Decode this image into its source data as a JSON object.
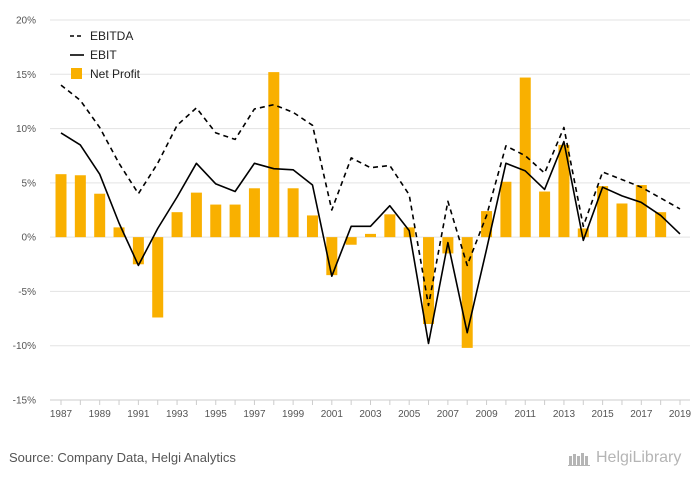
{
  "chart_data": {
    "type": "bar",
    "categories": [
      1987,
      1988,
      1989,
      1990,
      1991,
      1992,
      1993,
      1994,
      1995,
      1996,
      1997,
      1998,
      1999,
      2000,
      2001,
      2002,
      2003,
      2004,
      2005,
      2006,
      2007,
      2008,
      2009,
      2010,
      2011,
      2012,
      2013,
      2014,
      2015,
      2016,
      2017,
      2018,
      2019
    ],
    "x_tick_labels": [
      "1987",
      "1989",
      "1991",
      "1993",
      "1995",
      "1997",
      "1999",
      "2001",
      "2003",
      "2005",
      "2007",
      "2009",
      "2011",
      "2013",
      "2015",
      "2017",
      "2019"
    ],
    "y_ticks": [
      -15,
      -10,
      -5,
      0,
      5,
      10,
      15,
      20
    ],
    "y_tick_labels": [
      "-15%",
      "-10%",
      "-5%",
      "0%",
      "5%",
      "10%",
      "15%",
      "20%"
    ],
    "ylim": [
      -15,
      20
    ],
    "grid": true,
    "legend_position": "top-left",
    "series": [
      {
        "name": "EBITDA",
        "kind": "line",
        "style": "dashed",
        "color": "#000000",
        "values": [
          14.0,
          12.6,
          10.1,
          6.8,
          4.0,
          6.8,
          10.3,
          11.9,
          9.6,
          9.0,
          11.8,
          12.2,
          11.5,
          10.3,
          2.5,
          7.3,
          6.4,
          6.6,
          3.9,
          -6.3,
          3.3,
          -2.6,
          2.0,
          8.4,
          7.5,
          5.9,
          10.1,
          1.0,
          6.0,
          5.3,
          4.6,
          3.6,
          2.6
        ]
      },
      {
        "name": "EBIT",
        "kind": "line",
        "style": "solid",
        "color": "#000000",
        "values": [
          9.6,
          8.5,
          5.8,
          1.3,
          -2.6,
          0.8,
          3.7,
          6.8,
          4.9,
          4.2,
          6.8,
          6.3,
          6.2,
          4.8,
          -3.6,
          1.0,
          1.0,
          2.9,
          0.6,
          -9.8,
          -0.5,
          -8.8,
          -1.1,
          6.8,
          6.1,
          4.4,
          8.8,
          -0.3,
          4.6,
          3.8,
          3.2,
          2.0,
          0.3
        ]
      },
      {
        "name": "Net Profit",
        "kind": "bar",
        "color": "#F9B000",
        "values": [
          5.8,
          5.7,
          4.0,
          0.9,
          -2.5,
          -7.4,
          2.3,
          4.1,
          3.0,
          3.0,
          4.5,
          15.2,
          4.5,
          2.0,
          -3.5,
          -0.7,
          0.3,
          2.1,
          0.9,
          -8.0,
          -1.5,
          -10.2,
          2.4,
          5.1,
          14.7,
          4.2,
          8.5,
          0.8,
          4.7,
          3.1,
          4.8,
          2.3,
          0.0
        ]
      }
    ]
  },
  "footer": {
    "source": "Source: Company Data, Helgi Analytics",
    "brand": "HelgiLibrary"
  }
}
